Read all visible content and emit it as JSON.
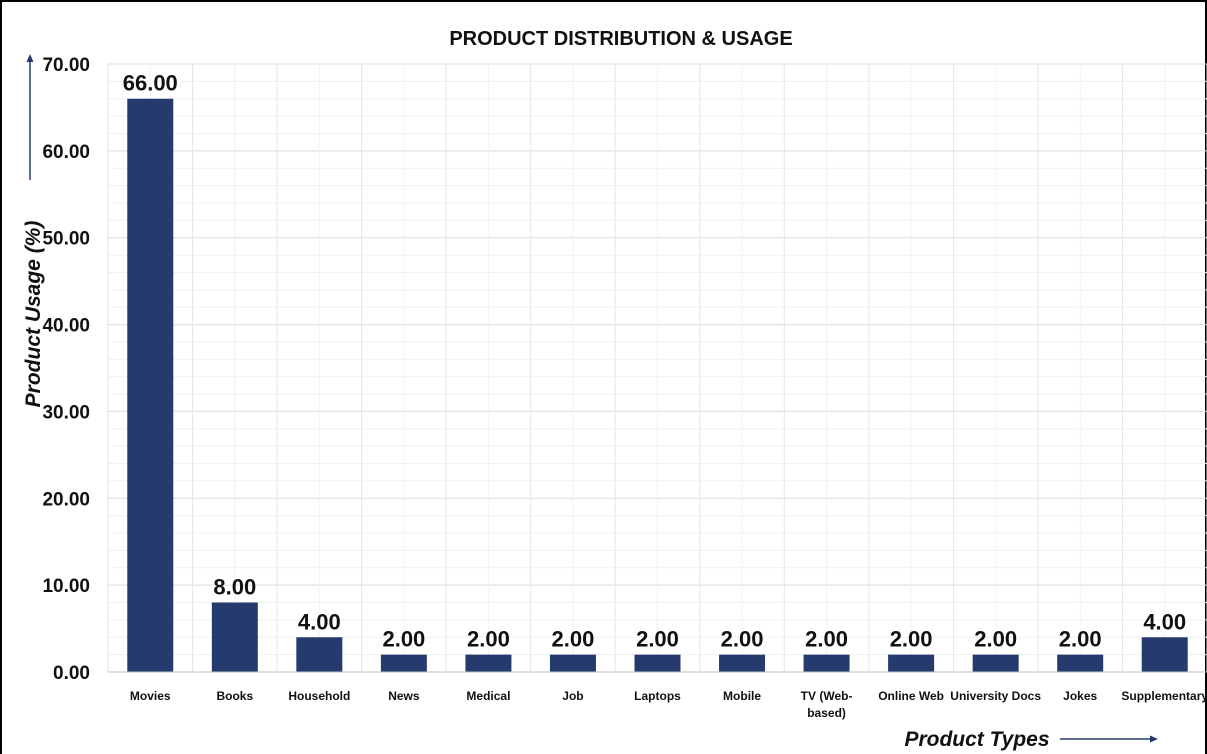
{
  "chart_data": {
    "type": "bar",
    "title": "PRODUCT DISTRIBUTION & USAGE",
    "xlabel": "Product Types",
    "ylabel": "Product Usage (%)",
    "ylim": [
      0,
      70
    ],
    "yticks": [
      "0.00",
      "10.00",
      "20.00",
      "30.00",
      "40.00",
      "50.00",
      "60.00",
      "70.00"
    ],
    "categories": [
      "Movies",
      "Books",
      "Household",
      "News",
      "Medical",
      "Job",
      "Laptops",
      "Mobile",
      "TV (Web-based)",
      "Online Web",
      "University Docs",
      "Jokes",
      "Supplementary"
    ],
    "category_lines": [
      [
        "Movies"
      ],
      [
        "Books"
      ],
      [
        "Household"
      ],
      [
        "News"
      ],
      [
        "Medical"
      ],
      [
        "Job"
      ],
      [
        "Laptops"
      ],
      [
        "Mobile"
      ],
      [
        "TV (Web-",
        "based)"
      ],
      [
        "Online Web"
      ],
      [
        "University Docs"
      ],
      [
        "Jokes"
      ],
      [
        "Supplementary"
      ]
    ],
    "values": [
      66,
      8,
      4,
      2,
      2,
      2,
      2,
      2,
      2,
      2,
      2,
      2,
      4
    ],
    "data_labels": [
      "66.00",
      "8.00",
      "4.00",
      "2.00",
      "2.00",
      "2.00",
      "2.00",
      "2.00",
      "2.00",
      "2.00",
      "2.00",
      "2.00",
      "4.00"
    ],
    "grid": true,
    "bar_color": "#253b6e",
    "grid_color": "#e6e6e6"
  }
}
